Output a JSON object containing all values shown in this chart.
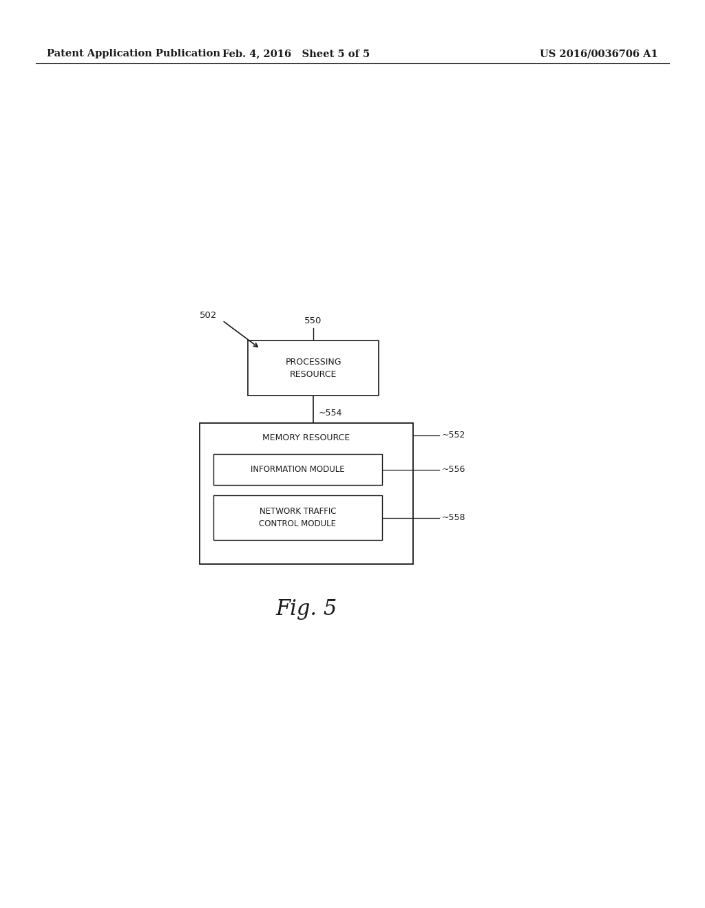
{
  "bg_color": "#ffffff",
  "header_left": "Patent Application Publication",
  "header_mid": "Feb. 4, 2016   Sheet 5 of 5",
  "header_right": "US 2016/0036706 A1",
  "label_502": "502",
  "label_550": "550",
  "label_554": "~554",
  "label_552": "~552",
  "label_556": "~556",
  "label_558": "~558",
  "proc_text": "PROCESSING\nRESOURCE",
  "mem_text": "MEMORY RESOURCE",
  "info_text": "INFORMATION MODULE",
  "ntc_text": "NETWORK TRAFFIC\nCONTROL MODULE",
  "fig_label": "Fig. 5",
  "line_color": "#1a1a1a",
  "text_color": "#1a1a1a"
}
